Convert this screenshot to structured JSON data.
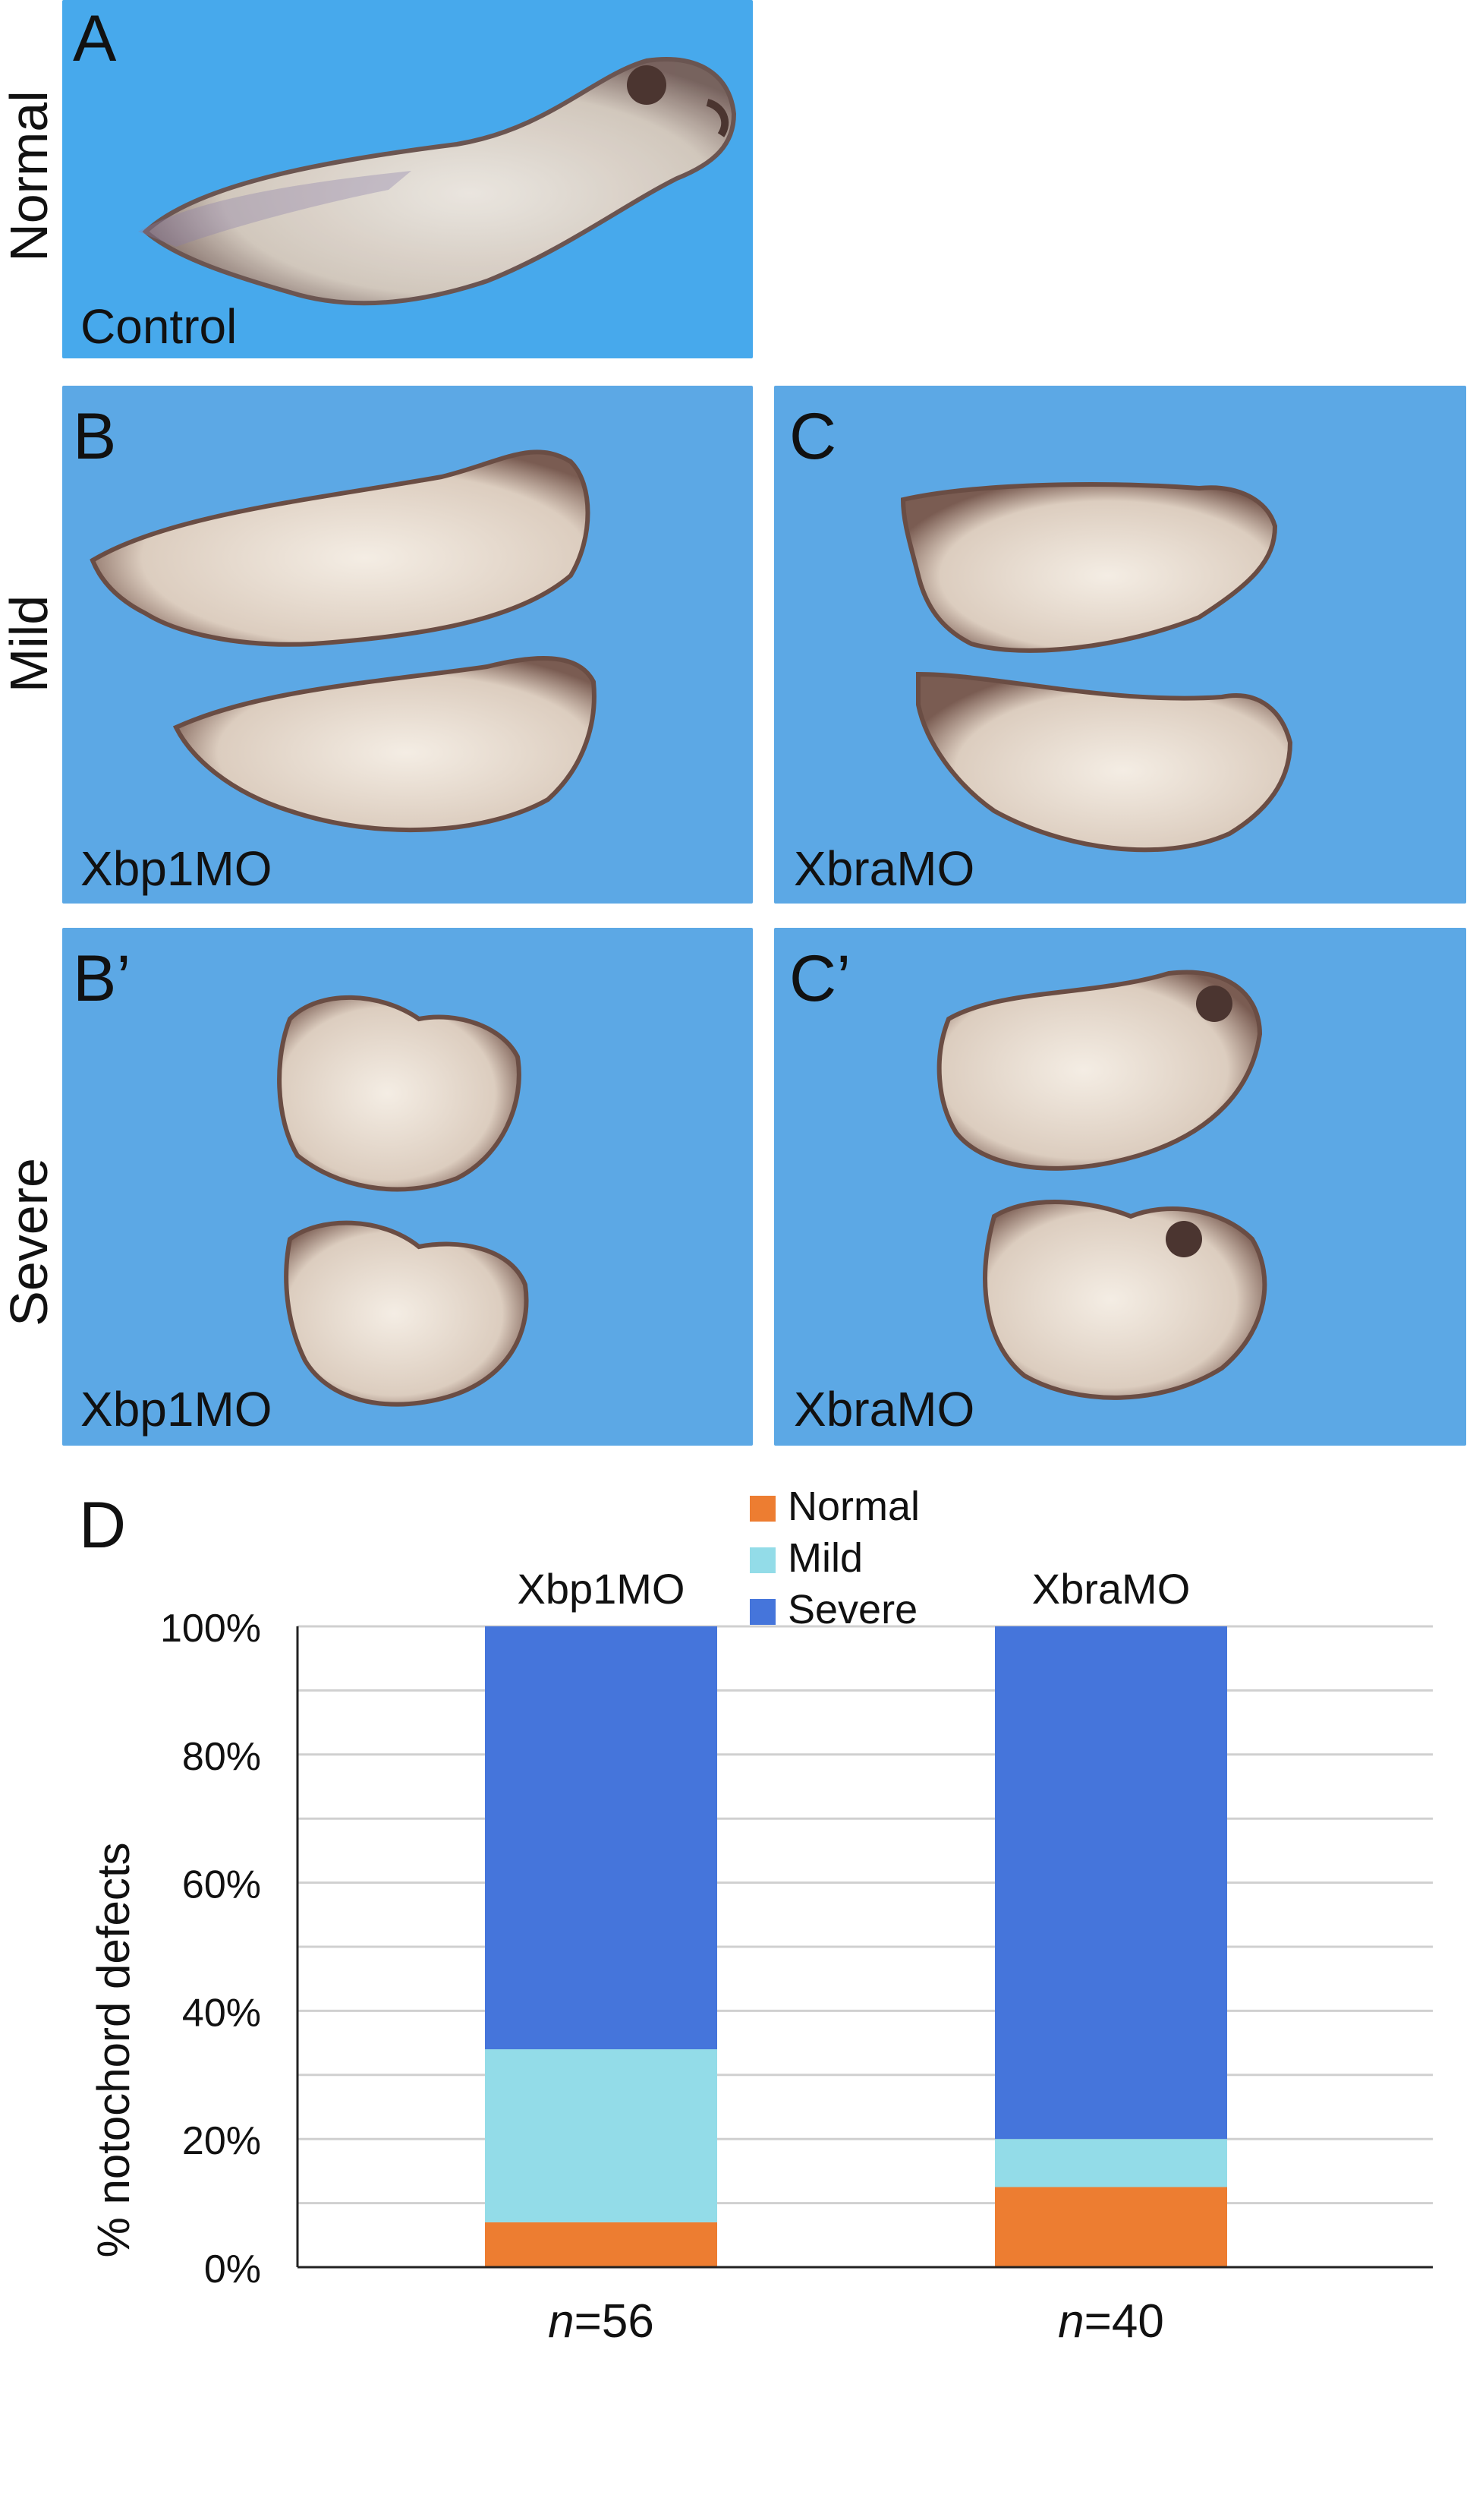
{
  "figure": {
    "row_labels": [
      "Normal",
      "Mild",
      "Severe"
    ],
    "panels": [
      {
        "id": "A",
        "letter": "A",
        "caption": "Control"
      },
      {
        "id": "B",
        "letter": "B",
        "caption": "Xbp1MO"
      },
      {
        "id": "C",
        "letter": "C",
        "caption": "XbraMO"
      },
      {
        "id": "Bp",
        "letter": "B’",
        "caption": "Xbp1MO"
      },
      {
        "id": "Cp",
        "letter": "C’",
        "caption": "XbraMO"
      }
    ],
    "panel_d_letter": "D"
  },
  "chart_data": {
    "type": "bar",
    "stacked": true,
    "categories": [
      "Xbp1MO",
      "XbraMO"
    ],
    "n_labels": [
      "56",
      "40"
    ],
    "n_prefix": "n",
    "series": [
      {
        "name": "Normal",
        "values": [
          7,
          12.5
        ],
        "color": "#ED7D31"
      },
      {
        "name": "Mild",
        "values": [
          27,
          7.5
        ],
        "color": "#93DCE8"
      },
      {
        "name": "Severe",
        "values": [
          66,
          80
        ],
        "color": "#4575DB"
      }
    ],
    "ylabel": "% notochord defects",
    "ylim": [
      0,
      100
    ],
    "yticks": [
      "0%",
      "20%",
      "40%",
      "60%",
      "80%",
      "100%"
    ],
    "yticks_values": [
      0,
      20,
      40,
      60,
      80,
      100
    ],
    "minor_gridlines_every": 10,
    "legend_position": "top-center",
    "grid": true
  }
}
